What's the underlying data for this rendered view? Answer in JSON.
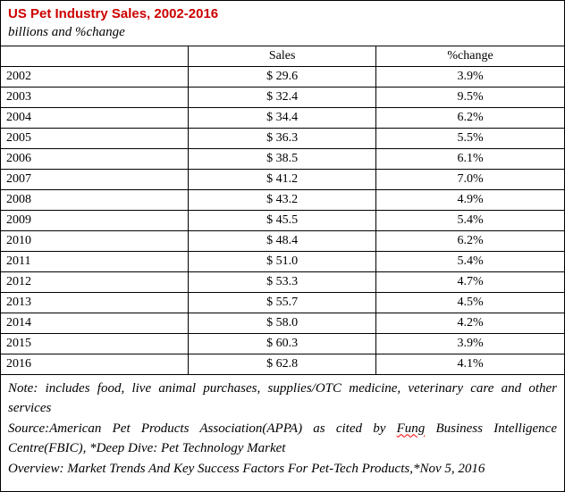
{
  "title": "US Pet Industry Sales, 2002-2016",
  "subtitle": "billions and %change",
  "colors": {
    "title_red": "#cc0000",
    "squiggle_red": "#ff0000",
    "text": "#000000",
    "background": "#ffffff"
  },
  "chart_data": {
    "type": "table",
    "title": "US Pet Industry Sales, 2002-2016",
    "subtitle": "billions and %change",
    "columns": [
      "",
      "Sales",
      "%change"
    ],
    "rows": [
      [
        "2002",
        "$ 29.6",
        "3.9%"
      ],
      [
        "2003",
        "$ 32.4",
        "9.5%"
      ],
      [
        "2004",
        "$ 34.4",
        "6.2%"
      ],
      [
        "2005",
        "$ 36.3",
        "5.5%"
      ],
      [
        "2006",
        "$ 38.5",
        "6.1%"
      ],
      [
        "2007",
        "$ 41.2",
        "7.0%"
      ],
      [
        "2008",
        "$ 43.2",
        "4.9%"
      ],
      [
        "2009",
        "$ 45.5",
        "5.4%"
      ],
      [
        "2010",
        "$ 48.4",
        "6.2%"
      ],
      [
        "2011",
        "$ 51.0",
        "5.4%"
      ],
      [
        "2012",
        "$ 53.3",
        "4.7%"
      ],
      [
        "2013",
        "$ 55.7",
        "4.5%"
      ],
      [
        "2014",
        "$ 58.0",
        "4.2%"
      ],
      [
        "2015",
        "$ 60.3",
        "3.9%"
      ],
      [
        "2016",
        "$ 62.8",
        "4.1%"
      ]
    ],
    "sales_values_billions": [
      29.6,
      32.4,
      34.4,
      36.3,
      38.5,
      41.2,
      43.2,
      45.5,
      48.4,
      51.0,
      53.3,
      55.7,
      58.0,
      60.3,
      62.8
    ],
    "pct_change_values": [
      3.9,
      9.5,
      6.2,
      5.5,
      6.1,
      7.0,
      4.9,
      5.4,
      6.2,
      5.4,
      4.7,
      4.5,
      4.2,
      3.9,
      4.1
    ]
  },
  "notes": {
    "note_line": "Note: includes food, live animal purchases, supplies/OTC medicine, veterinary care and other services",
    "source_segments": [
      "Source:American Pet Products Association(APPA) as cited by ",
      "Fung",
      " Business Intelligence Centre(FBIC), *Deep Dive: Pet Technology Market"
    ],
    "overview_line": "Overview: Market Trends And Key Success Factors For Pet-Tech Products,*Nov 5, 2016"
  }
}
